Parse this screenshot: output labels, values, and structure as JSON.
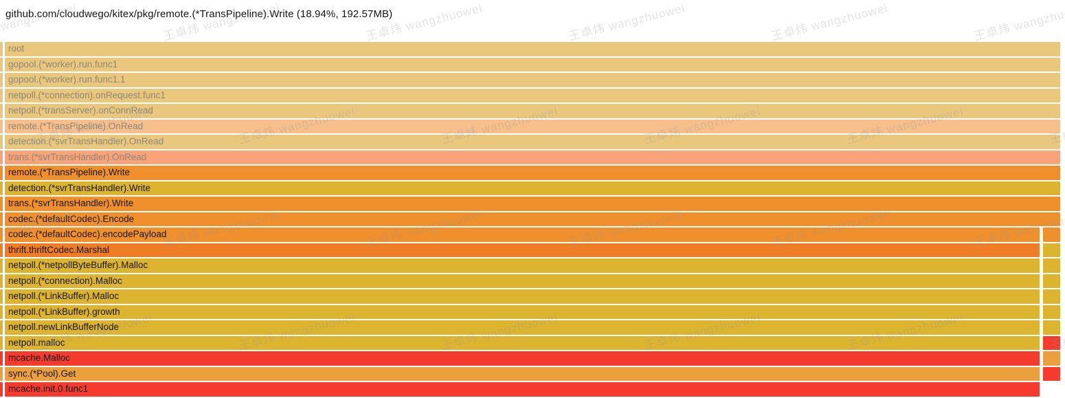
{
  "header": {
    "title": "github.com/cloudwego/kitex/pkg/remote.(*TransPipeline).Write (18.94%, 192.57MB)"
  },
  "watermark": {
    "text": "王卓炜 wangzhuowei"
  },
  "palette": {
    "tan": "#e9c77d",
    "peach": "#f6bf8b",
    "salmon": "#f9a379",
    "orange": "#f0902d",
    "dark_orange": "#ee7d26",
    "mustard": "#dcb42f",
    "red": "#f43b2d",
    "amber": "#eb9f3e",
    "ancestor_text": "#8d8779",
    "focus_text": "#161616"
  },
  "chart_data": {
    "type": "flamegraph",
    "title": "github.com/cloudwego/kitex/pkg/remote.(*TransPipeline).Write (18.94%, 192.57MB)",
    "selected_frame": "remote.(*TransPipeline).Write",
    "selected_percent": "18.94%",
    "selected_value": "192.57MB",
    "stack_top_to_bottom": [
      "root",
      "gopool.(*worker).run.func1",
      "gopool.(*worker).run.func1.1",
      "netpoll.(*connection).onRequest.func1",
      "netpoll.(*transServer).onConnRead",
      "remote.(*TransPipeline).OnRead",
      "detection.(*svrTransHandler).OnRead",
      "trans.(*svrTransHandler).OnRead",
      "remote.(*TransPipeline).Write",
      "detection.(*svrTransHandler).Write",
      "trans.(*svrTransHandler).Write",
      "codec.(*defaultCodec).Encode",
      "codec.(*defaultCodec).encodePayload",
      "thrift.thriftCodec.Marshal",
      "netpoll.(*netpollByteBuffer).Malloc",
      "netpoll.(*connection).Malloc",
      "netpoll.(*LinkBuffer).Malloc",
      "netpoll.(*LinkBuffer).growth",
      "netpoll.newLinkBufferNode",
      "netpoll.malloc",
      "mcache.Malloc",
      "sync.(*Pool).Get",
      "mcache.init.0.func1"
    ]
  },
  "flame": {
    "rows": [
      {
        "label": "root",
        "color": "tan",
        "text": "ancestor",
        "layout": "full"
      },
      {
        "label": "gopool.(*worker).run.func1",
        "color": "tan",
        "text": "ancestor",
        "layout": "full"
      },
      {
        "label": "gopool.(*worker).run.func1.1",
        "color": "tan",
        "text": "ancestor",
        "layout": "full"
      },
      {
        "label": "netpoll.(*connection).onRequest.func1",
        "color": "tan",
        "text": "ancestor",
        "layout": "full"
      },
      {
        "label": "netpoll.(*transServer).onConnRead",
        "color": "tan",
        "text": "ancestor",
        "layout": "full"
      },
      {
        "label": "remote.(*TransPipeline).OnRead",
        "color": "peach",
        "text": "ancestor",
        "layout": "full"
      },
      {
        "label": "detection.(*svrTransHandler).OnRead",
        "color": "tan",
        "text": "ancestor",
        "layout": "full"
      },
      {
        "label": "trans.(*svrTransHandler).OnRead",
        "color": "salmon",
        "text": "ancestor",
        "layout": "full"
      },
      {
        "label": "remote.(*TransPipeline).Write",
        "color": "orange",
        "text": "focus",
        "layout": "full"
      },
      {
        "label": "detection.(*svrTransHandler).Write",
        "color": "mustard",
        "text": "focus",
        "layout": "full"
      },
      {
        "label": "trans.(*svrTransHandler).Write",
        "color": "orange",
        "text": "focus",
        "layout": "full"
      },
      {
        "label": "codec.(*defaultCodec).Encode",
        "color": "orange",
        "text": "focus",
        "layout": "full"
      },
      {
        "label": "codec.(*defaultCodec).encodePayload",
        "color": "orange",
        "text": "focus",
        "layout": "split",
        "right_color": "orange"
      },
      {
        "label": "thrift.thriftCodec.Marshal",
        "color": "dark_orange",
        "text": "focus",
        "layout": "split",
        "right_color": "mustard"
      },
      {
        "label": "netpoll.(*netpollByteBuffer).Malloc",
        "color": "mustard",
        "text": "focus",
        "layout": "split",
        "right_color": "mustard"
      },
      {
        "label": "netpoll.(*connection).Malloc",
        "color": "mustard",
        "text": "focus",
        "layout": "split",
        "right_color": "mustard"
      },
      {
        "label": "netpoll.(*LinkBuffer).Malloc",
        "color": "mustard",
        "text": "focus",
        "layout": "split",
        "right_color": "mustard"
      },
      {
        "label": "netpoll.(*LinkBuffer).growth",
        "color": "mustard",
        "text": "focus",
        "layout": "split",
        "right_color": "mustard"
      },
      {
        "label": "netpoll.newLinkBufferNode",
        "color": "mustard",
        "text": "focus",
        "layout": "split",
        "right_color": "mustard"
      },
      {
        "label": "netpoll.malloc",
        "color": "mustard",
        "text": "focus",
        "layout": "split",
        "right_color": "red"
      },
      {
        "label": "mcache.Malloc",
        "color": "red",
        "text": "focus",
        "layout": "split",
        "right_color": "amber"
      },
      {
        "label": "sync.(*Pool).Get",
        "color": "amber",
        "text": "focus",
        "layout": "split",
        "right_color": "red"
      },
      {
        "label": "mcache.init.0.func1",
        "color": "red",
        "text": "focus",
        "layout": "main-only"
      }
    ]
  }
}
